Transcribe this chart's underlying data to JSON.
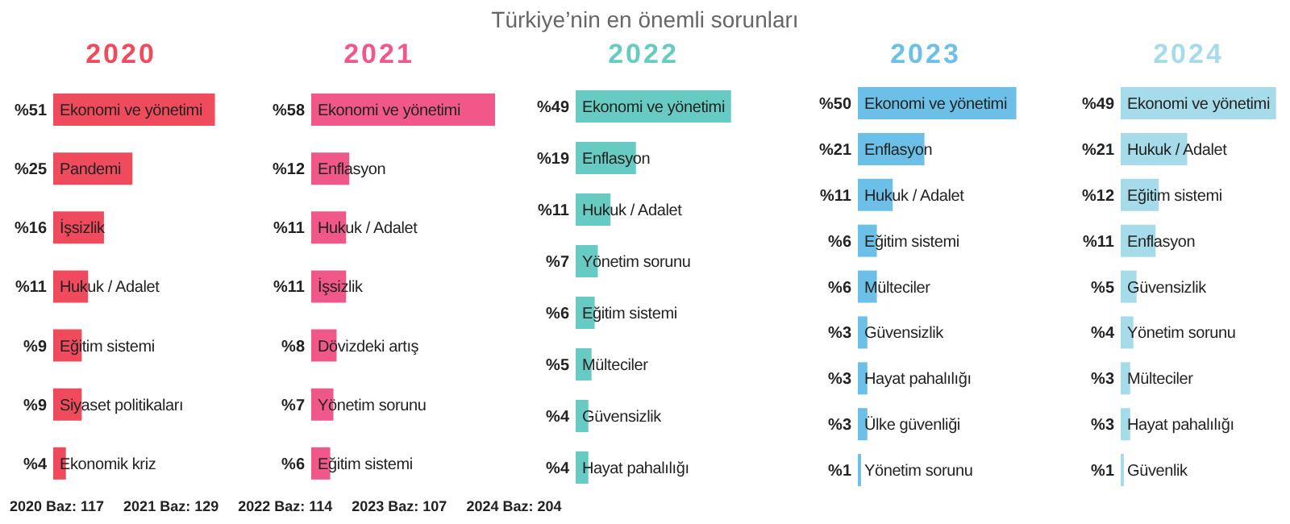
{
  "chart_data": [
    {
      "type": "other",
      "title": "Türkiye’nin en önemli sorunları",
      "annotations": [
        "2020 Baz: 117",
        "2021 Baz: 129",
        "2022 Baz: 114",
        "2023 Baz: 107",
        "2024 Baz: 204"
      ]
    },
    {
      "type": "bar",
      "orientation": "horizontal",
      "title": "2020",
      "color": "#ef4b5c",
      "categories": [
        "Ekonomi ve yönetimi",
        "Pandemi",
        "İşsizlik",
        "Hukuk / Adalet",
        "Eğitim sistemi",
        "Siyaset politikaları",
        "Ekonomik kriz"
      ],
      "values": [
        51,
        25,
        16,
        11,
        9,
        9,
        4
      ],
      "value_labels": [
        "%51",
        "%25",
        "%16",
        "%11",
        "%9",
        "%9",
        "%4"
      ]
    },
    {
      "type": "bar",
      "orientation": "horizontal",
      "title": "2021",
      "color": "#f0588a",
      "categories": [
        "Ekonomi ve yönetimi",
        "Enflasyon",
        "Hukuk / Adalet",
        "İşsizlik",
        "Dövizdeki artış",
        "Yönetim sorunu",
        "Eğitim sistemi"
      ],
      "values": [
        58,
        12,
        11,
        11,
        8,
        7,
        6
      ],
      "value_labels": [
        "%58",
        "%12",
        "%11",
        "%11",
        "%8",
        "%7",
        "%6"
      ]
    },
    {
      "type": "bar",
      "orientation": "horizontal",
      "title": "2022",
      "color": "#67cbc3",
      "categories": [
        "Ekonomi ve yönetimi",
        "Enflasyon",
        "Hukuk / Adalet",
        "Yönetim sorunu",
        "Eğitim sistemi",
        "Mülteciler",
        "Güvensizlik",
        "Hayat pahalılığı"
      ],
      "values": [
        49,
        19,
        11,
        7,
        6,
        5,
        4,
        4
      ],
      "value_labels": [
        "%49",
        "%19",
        "%11",
        "%7",
        "%6",
        "%5",
        "%4",
        "%4"
      ]
    },
    {
      "type": "bar",
      "orientation": "horizontal",
      "title": "2023",
      "color": "#6cc0e8",
      "categories": [
        "Ekonomi ve yönetimi",
        "Enflasyon",
        "Hukuk / Adalet",
        "Eğitim sistemi",
        "Mülteciler",
        "Güvensizlik",
        "Hayat pahalılığı",
        "Ülke güvenliği",
        "Yönetim sorunu"
      ],
      "values": [
        50,
        21,
        11,
        6,
        6,
        3,
        3,
        3,
        1
      ],
      "value_labels": [
        "%50",
        "%21",
        "%11",
        "%6",
        "%6",
        "%3",
        "%3",
        "%3",
        "%1"
      ]
    },
    {
      "type": "bar",
      "orientation": "horizontal",
      "title": "2024",
      "color": "#a6dcea",
      "categories": [
        "Ekonomi ve yönetimi",
        "Hukuk / Adalet",
        "Eğitim sistemi",
        "Enflasyon",
        "Güvensizlik",
        "Yönetim sorunu",
        "Mülteciler",
        "Hayat pahalılığı",
        "Güvenlik"
      ],
      "values": [
        49,
        21,
        12,
        11,
        5,
        4,
        3,
        3,
        1
      ],
      "value_labels": [
        "%49",
        "%21",
        "%12",
        "%11",
        "%5",
        "%4",
        "%3",
        "%3",
        "%1"
      ]
    }
  ]
}
